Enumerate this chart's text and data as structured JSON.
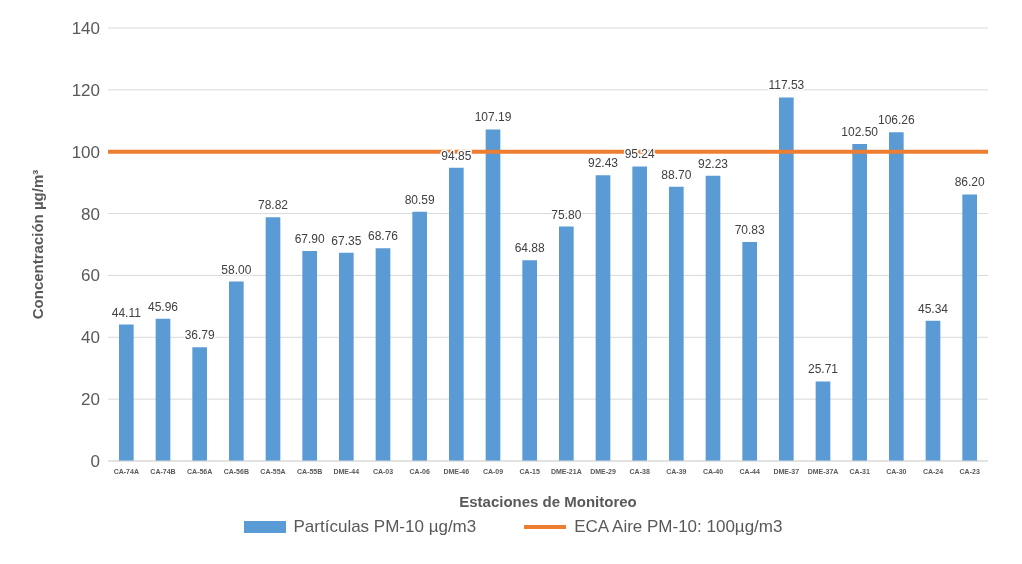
{
  "chart_data": {
    "type": "bar",
    "xlabel": "Estaciones de Monitoreo",
    "ylabel": "Concentración µg/m³",
    "categories": [
      "CA-74A",
      "CA-74B",
      "CA-56A",
      "CA-56B",
      "CA-55A",
      "CA-55B",
      "DME-44",
      "CA-03",
      "CA-06",
      "DME-46",
      "CA-09",
      "CA-15",
      "DME-21A",
      "DME-29",
      "CA-38",
      "CA-39",
      "CA-40",
      "CA-44",
      "DME-37",
      "DME-37A",
      "CA-31",
      "CA-30",
      "CA-24",
      "CA-23"
    ],
    "series": [
      {
        "name": "Partículas PM-10 µg/m3",
        "color": "#5b9bd5",
        "values": [
          44.11,
          45.96,
          36.79,
          58.0,
          78.82,
          67.9,
          67.35,
          68.76,
          80.59,
          94.85,
          107.19,
          64.88,
          75.8,
          92.43,
          95.24,
          88.7,
          92.23,
          70.83,
          117.53,
          25.71,
          102.5,
          106.26,
          45.34,
          86.2
        ],
        "value_labels": [
          "44.11",
          "45.96",
          "36.79",
          "58.00",
          "78.82",
          "67.90",
          "67.35",
          "68.76",
          "80.59",
          "94.85",
          "107.19",
          "64.88",
          "75.80",
          "92.43",
          "95.24",
          "88.70",
          "92.23",
          "70.83",
          "117.53",
          "25.71",
          "102.50",
          "106.26",
          "45.34",
          "86.20"
        ]
      }
    ],
    "ref_lines": [
      {
        "axis": "y",
        "value": 100,
        "label": "ECA Aire PM-10: 100µg/m3",
        "color": "#ed7d31"
      }
    ],
    "ylim": [
      0,
      140
    ],
    "yticks": [
      0,
      20,
      40,
      60,
      80,
      100,
      120,
      140
    ],
    "grid": "y",
    "legend": "bottom"
  }
}
